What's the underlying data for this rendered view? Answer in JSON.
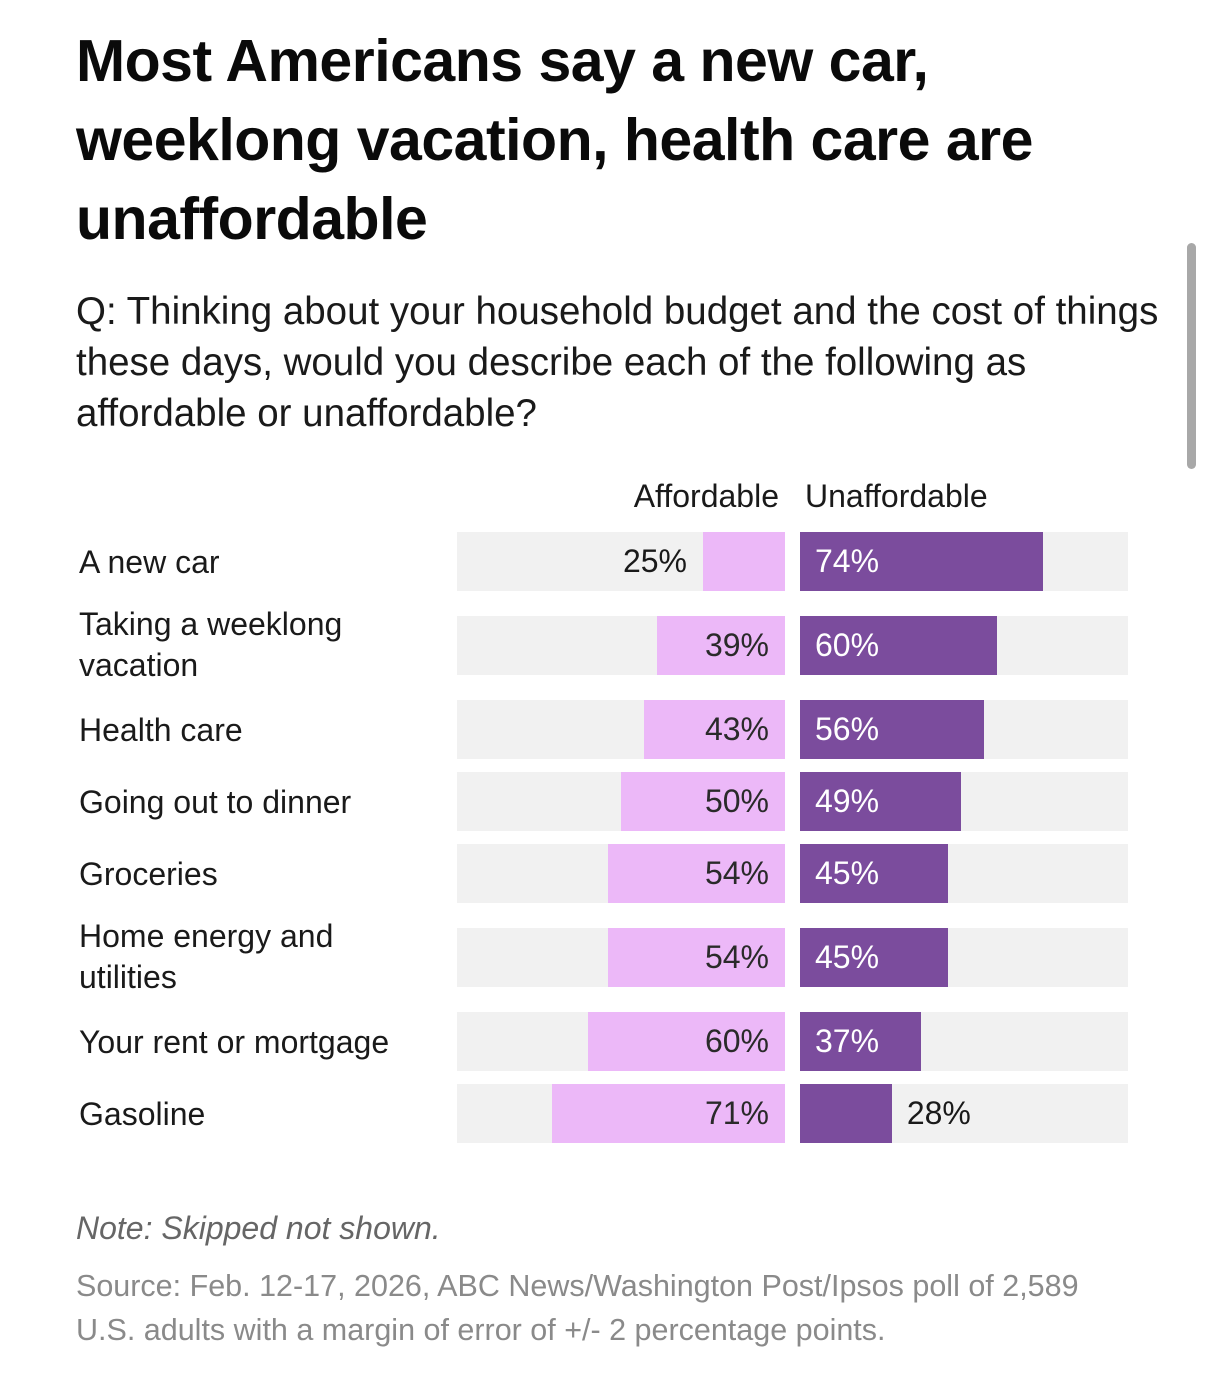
{
  "chart_data": {
    "type": "bar",
    "orientation": "horizontal-diverging",
    "title": "Most Americans say a new car, weeklong vacation, health care are unaffordable",
    "subtitle": "Q: Thinking about your household budget and the cost of things these days, would you describe each of the following as affordable or unaffordable?",
    "xlim": [
      0,
      100
    ],
    "categories": [
      "A new car",
      "Taking a weeklong vacation",
      "Health care",
      "Going out to dinner",
      "Groceries",
      "Home energy and utilities",
      "Your rent or mortgage",
      "Gasoline"
    ],
    "series": [
      {
        "name": "Affordable",
        "color": "#ecb8f8",
        "values": [
          25,
          39,
          43,
          50,
          54,
          54,
          60,
          71
        ]
      },
      {
        "name": "Unaffordable",
        "color": "#7b4c9d",
        "values": [
          74,
          60,
          56,
          49,
          45,
          45,
          37,
          28
        ]
      }
    ],
    "value_labels": {
      "affordable": [
        "25%",
        "39%",
        "43%",
        "50%",
        "54%",
        "54%",
        "60%",
        "71%"
      ],
      "unaffordable": [
        "74%",
        "60%",
        "56%",
        "49%",
        "45%",
        "45%",
        "37%",
        "28%"
      ]
    },
    "legend": [
      "Affordable",
      "Unaffordable"
    ],
    "legend_position": "top",
    "note": "Note: Skipped not shown.",
    "source": "Source: Feb. 12-17, 2026, ABC News/Washington Post/Ipsos poll of 2,589 U.S. adults with a margin of error of +/- 2 percentage points."
  },
  "colors": {
    "track": "#f1f1f1",
    "affordable": "#ecb8f8",
    "unaffordable": "#7b4c9d"
  }
}
